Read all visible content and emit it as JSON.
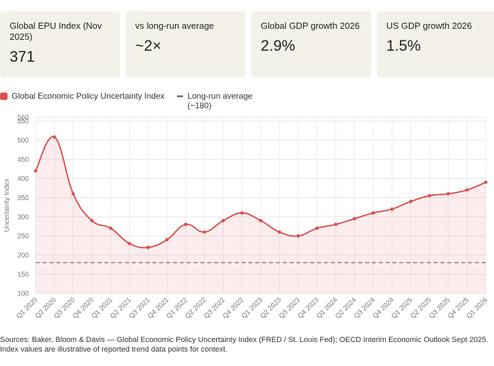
{
  "cards": [
    {
      "label": "Global EPU Index (Nov 2025)",
      "value": "371"
    },
    {
      "label": "vs long-run average",
      "value": "~2×"
    },
    {
      "label": "Global GDP growth 2026",
      "value": "2.9%"
    },
    {
      "label": "US GDP growth 2026",
      "value": "1.5%"
    }
  ],
  "chart_data": {
    "type": "line",
    "y_label": "Uncertainty Index",
    "categories": [
      "Q1 2020",
      "Q2 2020",
      "Q3 2020",
      "Q4 2020",
      "Q1 2021",
      "Q2 2021",
      "Q3 2021",
      "Q4 2021",
      "Q1 2022",
      "Q2 2022",
      "Q3 2022",
      "Q4 2022",
      "Q1 2023",
      "Q2 2023",
      "Q3 2023",
      "Q4 2023",
      "Q1 2024",
      "Q2 2024",
      "Q3 2024",
      "Q4 2024",
      "Q1 2025",
      "Q2 2025",
      "Q3 2025",
      "Q4 2025",
      "Q1 2026"
    ],
    "series": [
      {
        "name": "Global Economic Policy Uncertainty Index",
        "color": "#dc4f4f",
        "values": [
          420,
          508,
          360,
          290,
          270,
          230,
          220,
          240,
          280,
          260,
          290,
          310,
          290,
          260,
          250,
          270,
          280,
          295,
          310,
          320,
          340,
          355,
          360,
          370,
          390
        ]
      },
      {
        "name": "Long-run average (~180)",
        "color": "#8c7b7b",
        "dashed": true,
        "values": [
          180,
          180,
          180,
          180,
          180,
          180,
          180,
          180,
          180,
          180,
          180,
          180,
          180,
          180,
          180,
          180,
          180,
          180,
          180,
          180,
          180,
          180,
          180,
          180,
          180
        ]
      }
    ],
    "ylim": [
      100,
      560
    ],
    "yticks": [
      100,
      150,
      200,
      250,
      300,
      350,
      400,
      450,
      500,
      550,
      560
    ],
    "grid": true
  },
  "source": "Sources: Baker, Bloom & Davis — Global Economic Policy Uncertainty Index (FRED / St. Louis Fed); OECD Interim Economic Outlook Sept 2025. Index values are illustrative of reported trend data points for context."
}
